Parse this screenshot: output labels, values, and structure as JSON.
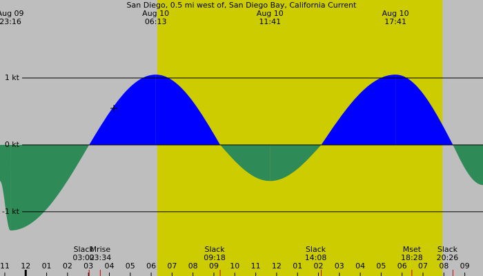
{
  "chart_data": {
    "type": "tide-current",
    "title": "San Diego, 0.5 mi west of, San Diego Bay, California Current",
    "x": [
      -1.23,
      -0.733,
      3.033,
      6.217,
      9.3,
      11.683,
      14.133,
      17.683,
      20.433,
      21.87
    ],
    "values": [
      -0.54,
      -1.28,
      0,
      1.05,
      0,
      -0.54,
      0,
      1.05,
      0,
      -0.6
    ],
    "point_labels": [
      null,
      {
        "date": "Aug 09",
        "time": "23:16"
      },
      {
        "event": "Slack",
        "time": "03:02"
      },
      {
        "date": "Aug 10",
        "time": "06:13"
      },
      {
        "event": "Slack",
        "time": "09:18"
      },
      {
        "date": "Aug 10",
        "time": "11:41"
      },
      {
        "event": "Slack",
        "time": "14:08"
      },
      {
        "date": "Aug 10",
        "time": "17:41"
      },
      {
        "event": "Slack",
        "time": "20:26"
      },
      null
    ],
    "moon_events": [
      {
        "event": "Mrise",
        "time": "03:34",
        "x": 3.567
      },
      {
        "event": "Mset",
        "time": "18:28",
        "x": 18.467
      }
    ],
    "daylight": [
      6.29,
      19.93
    ],
    "flood_color": "#0000ff",
    "ebb_color": "#2e8b57",
    "daylight_color": "#cccc00",
    "night_color": "#bebebe",
    "xlim": [
      -1.23,
      21.87
    ],
    "xticks": [
      {
        "value": -1,
        "label": "11"
      },
      {
        "value": 0,
        "label": "12"
      },
      {
        "value": 1,
        "label": "01"
      },
      {
        "value": 2,
        "label": "02"
      },
      {
        "value": 3,
        "label": "03"
      },
      {
        "value": 4,
        "label": "04"
      },
      {
        "value": 5,
        "label": "05"
      },
      {
        "value": 6,
        "label": "06"
      },
      {
        "value": 7,
        "label": "07"
      },
      {
        "value": 8,
        "label": "08"
      },
      {
        "value": 9,
        "label": "09"
      },
      {
        "value": 10,
        "label": "10"
      },
      {
        "value": 11,
        "label": "11"
      },
      {
        "value": 12,
        "label": "12"
      },
      {
        "value": 13,
        "label": "01"
      },
      {
        "value": 14,
        "label": "02"
      },
      {
        "value": 15,
        "label": "03"
      },
      {
        "value": 16,
        "label": "04"
      },
      {
        "value": 17,
        "label": "05"
      },
      {
        "value": 18,
        "label": "06"
      },
      {
        "value": 19,
        "label": "07"
      },
      {
        "value": 20,
        "label": "08"
      },
      {
        "value": 21,
        "label": "09"
      }
    ],
    "ylim": [
      -1.96,
      2.165
    ],
    "yticks": [
      {
        "value": 1,
        "label": "1 kt"
      },
      {
        "value": 0,
        "label": "0 kt"
      },
      {
        "value": -1,
        "label": "-1 kt"
      }
    ]
  }
}
